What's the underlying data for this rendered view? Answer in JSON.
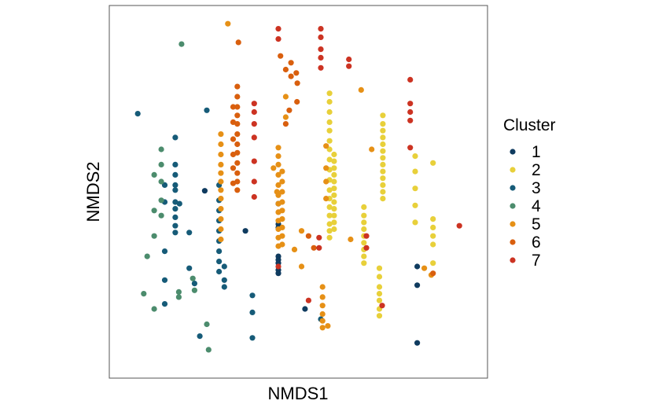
{
  "chart_data": {
    "type": "scatter",
    "title": "",
    "xlabel": "NMDS1",
    "ylabel": "NMDS2",
    "xlim": [
      0,
      10
    ],
    "ylim": [
      0,
      10
    ],
    "x_ticks_shown": false,
    "y_ticks_shown": false,
    "grid": false,
    "legend": {
      "title": "Cluster",
      "placement": "right"
    },
    "series": [
      {
        "name": "1",
        "color": "#0f3b5f",
        "points": [
          [
            2.34,
            5.03
          ],
          [
            4.44,
            4.65
          ],
          [
            4.44,
            4.05
          ],
          [
            4.44,
            3.95
          ],
          [
            4.44,
            3.1
          ],
          [
            4.44,
            3.0
          ],
          [
            4.44,
            2.9
          ],
          [
            4.44,
            2.7
          ],
          [
            4.44,
            2.6
          ],
          [
            3.5,
            3.85
          ],
          [
            5.2,
            1.55
          ],
          [
            8.4,
            2.8
          ],
          [
            8.4,
            2.25
          ],
          [
            8.4,
            0.55
          ]
        ]
      },
      {
        "name": "2",
        "color": "#e8d03a",
        "points": [
          [
            5.9,
            7.9
          ],
          [
            5.9,
            7.65
          ],
          [
            5.9,
            7.35
          ],
          [
            5.9,
            7.05
          ],
          [
            5.9,
            6.8
          ],
          [
            5.9,
            6.5
          ],
          [
            5.9,
            6.25
          ],
          [
            5.9,
            5.95
          ],
          [
            5.9,
            5.65
          ],
          [
            5.9,
            5.35
          ],
          [
            5.9,
            5.05
          ],
          [
            5.9,
            4.8
          ],
          [
            5.9,
            4.55
          ],
          [
            5.9,
            4.3
          ],
          [
            5.9,
            4.05
          ],
          [
            5.9,
            3.85
          ],
          [
            5.9,
            3.65
          ],
          [
            6.03,
            6.1
          ],
          [
            6.03,
            5.9
          ],
          [
            6.03,
            5.7
          ],
          [
            6.03,
            5.5
          ],
          [
            6.03,
            5.3
          ],
          [
            6.03,
            5.1
          ],
          [
            6.03,
            4.9
          ],
          [
            6.03,
            4.7
          ],
          [
            6.03,
            4.5
          ],
          [
            6.03,
            4.3
          ],
          [
            6.03,
            4.1
          ],
          [
            6.03,
            3.9
          ],
          [
            6.88,
            4.55
          ],
          [
            6.88,
            4.3
          ],
          [
            6.88,
            4.1
          ],
          [
            6.88,
            3.9
          ],
          [
            6.88,
            3.7
          ],
          [
            6.88,
            3.5
          ],
          [
            6.88,
            3.3
          ],
          [
            6.88,
            3.1
          ],
          [
            6.88,
            2.9
          ],
          [
            7.42,
            7.25
          ],
          [
            7.42,
            7.0
          ],
          [
            7.42,
            6.8
          ],
          [
            7.42,
            6.6
          ],
          [
            7.42,
            6.4
          ],
          [
            7.42,
            6.2
          ],
          [
            7.42,
            6.0
          ],
          [
            7.42,
            5.8
          ],
          [
            7.42,
            5.6
          ],
          [
            7.42,
            5.4
          ],
          [
            7.42,
            5.2
          ],
          [
            7.42,
            5.0
          ],
          [
            7.42,
            4.8
          ],
          [
            7.32,
            2.75
          ],
          [
            7.32,
            2.5
          ],
          [
            7.32,
            2.2
          ],
          [
            7.32,
            2.0
          ],
          [
            7.32,
            1.8
          ],
          [
            7.32,
            1.55
          ],
          [
            7.32,
            1.35
          ],
          [
            8.34,
            6.05
          ],
          [
            8.34,
            5.6
          ],
          [
            8.34,
            5.1
          ],
          [
            8.34,
            4.6
          ],
          [
            8.34,
            4.1
          ],
          [
            8.85,
            5.85
          ],
          [
            8.85,
            4.2
          ],
          [
            8.85,
            3.95
          ],
          [
            8.85,
            3.7
          ],
          [
            8.85,
            3.45
          ],
          [
            8.85,
            2.9
          ]
        ]
      },
      {
        "name": "3",
        "color": "#165b78",
        "points": [
          [
            0.43,
            7.3
          ],
          [
            1.5,
            5.8
          ],
          [
            1.5,
            5.5
          ],
          [
            1.5,
            5.2
          ],
          [
            1.5,
            5.05
          ],
          [
            1.5,
            4.7
          ],
          [
            1.5,
            4.5
          ],
          [
            1.5,
            4.25
          ],
          [
            1.5,
            4.0
          ],
          [
            1.5,
            3.8
          ],
          [
            1.2,
            5.2
          ],
          [
            1.2,
            4.7
          ],
          [
            1.2,
            3.25
          ],
          [
            1.2,
            2.4
          ],
          [
            1.2,
            1.7
          ],
          [
            1.5,
            6.6
          ],
          [
            1.62,
            4.65
          ],
          [
            1.9,
            3.8
          ],
          [
            1.9,
            2.75
          ],
          [
            2.05,
            2.3
          ],
          [
            2.4,
            7.4
          ],
          [
            2.2,
            0.75
          ],
          [
            2.75,
            5.2
          ],
          [
            2.75,
            4.75
          ],
          [
            2.75,
            4.45
          ],
          [
            2.75,
            4.15
          ],
          [
            2.75,
            3.85
          ],
          [
            2.75,
            3.55
          ],
          [
            2.75,
            3.25
          ],
          [
            2.75,
            2.95
          ],
          [
            2.75,
            2.65
          ],
          [
            2.9,
            2.8
          ],
          [
            2.9,
            2.4
          ],
          [
            2.9,
            2.2
          ],
          [
            3.7,
            1.95
          ],
          [
            3.7,
            1.45
          ],
          [
            3.7,
            0.7
          ],
          [
            5.65,
            1.25
          ]
        ]
      },
      {
        "name": "4",
        "color": "#4c8c6d",
        "points": [
          [
            1.68,
            9.35
          ],
          [
            1.1,
            6.25
          ],
          [
            1.1,
            5.8
          ],
          [
            1.1,
            5.3
          ],
          [
            0.9,
            5.5
          ],
          [
            1.1,
            4.75
          ],
          [
            1.1,
            4.3
          ],
          [
            0.9,
            4.45
          ],
          [
            0.9,
            3.7
          ],
          [
            0.7,
            3.1
          ],
          [
            0.6,
            2.0
          ],
          [
            0.9,
            1.55
          ],
          [
            1.6,
            2.05
          ],
          [
            1.6,
            1.9
          ],
          [
            2.0,
            2.45
          ],
          [
            2.05,
            2.1
          ],
          [
            2.4,
            1.1
          ],
          [
            2.45,
            0.35
          ]
        ]
      },
      {
        "name": "5",
        "color": "#e69016",
        "points": [
          [
            3.0,
            9.95
          ],
          [
            2.8,
            6.7
          ],
          [
            2.8,
            6.4
          ],
          [
            2.8,
            6.1
          ],
          [
            2.8,
            5.8
          ],
          [
            2.8,
            5.55
          ],
          [
            2.8,
            5.3
          ],
          [
            2.8,
            5.05
          ],
          [
            2.8,
            4.8
          ],
          [
            2.8,
            4.5
          ],
          [
            2.8,
            4.2
          ],
          [
            2.8,
            3.9
          ],
          [
            2.8,
            3.6
          ],
          [
            4.44,
            6.3
          ],
          [
            4.44,
            6.05
          ],
          [
            4.44,
            5.8
          ],
          [
            4.44,
            5.5
          ],
          [
            4.44,
            5.2
          ],
          [
            4.44,
            4.9
          ],
          [
            4.44,
            4.65
          ],
          [
            4.44,
            4.4
          ],
          [
            4.44,
            4.15
          ],
          [
            4.44,
            3.9
          ],
          [
            4.44,
            3.65
          ],
          [
            4.44,
            3.4
          ],
          [
            4.55,
            5.6
          ],
          [
            4.55,
            5.3
          ],
          [
            4.55,
            5.0
          ],
          [
            4.55,
            4.7
          ],
          [
            4.55,
            4.45
          ],
          [
            4.55,
            4.2
          ],
          [
            4.55,
            3.95
          ],
          [
            4.55,
            3.7
          ],
          [
            4.55,
            3.45
          ],
          [
            4.4,
            5.0
          ],
          [
            4.3,
            5.7
          ],
          [
            4.65,
            7.8
          ],
          [
            4.65,
            7.2
          ],
          [
            4.9,
            3.3
          ],
          [
            5.1,
            3.85
          ],
          [
            5.1,
            2.8
          ],
          [
            5.8,
            6.35
          ],
          [
            5.8,
            5.7
          ],
          [
            5.8,
            5.3
          ],
          [
            5.8,
            4.8
          ],
          [
            5.7,
            2.2
          ],
          [
            5.7,
            1.9
          ],
          [
            5.7,
            1.65
          ],
          [
            5.7,
            1.4
          ],
          [
            5.7,
            1.2
          ],
          [
            5.7,
            1.0
          ],
          [
            5.85,
            1.05
          ],
          [
            6.5,
            3.6
          ],
          [
            6.8,
            8.0
          ],
          [
            7.1,
            6.25
          ],
          [
            8.6,
            2.75
          ],
          [
            8.8,
            2.55
          ]
        ]
      },
      {
        "name": "6",
        "color": "#d95f0e",
        "points": [
          [
            3.3,
            9.4
          ],
          [
            3.27,
            8.1
          ],
          [
            3.27,
            7.8
          ],
          [
            3.27,
            7.5
          ],
          [
            3.27,
            7.25
          ],
          [
            3.27,
            7.0
          ],
          [
            3.27,
            6.7
          ],
          [
            3.27,
            6.4
          ],
          [
            3.27,
            6.15
          ],
          [
            3.27,
            5.85
          ],
          [
            3.27,
            5.55
          ],
          [
            3.27,
            5.3
          ],
          [
            3.27,
            5.05
          ],
          [
            3.15,
            7.5
          ],
          [
            3.15,
            7.05
          ],
          [
            3.15,
            6.55
          ],
          [
            3.15,
            6.1
          ],
          [
            3.15,
            5.7
          ],
          [
            3.15,
            5.25
          ],
          [
            4.5,
            9.0
          ],
          [
            4.65,
            8.6
          ],
          [
            4.8,
            8.8
          ],
          [
            4.8,
            8.4
          ],
          [
            4.75,
            7.4
          ],
          [
            4.65,
            7.0
          ],
          [
            4.95,
            8.5
          ],
          [
            4.98,
            8.2
          ],
          [
            4.97,
            7.65
          ],
          [
            5.3,
            3.7
          ],
          [
            5.45,
            3.35
          ],
          [
            8.85,
            2.6
          ]
        ]
      },
      {
        "name": "7",
        "color": "#cc3322",
        "points": [
          [
            4.44,
            9.8
          ],
          [
            4.44,
            9.5
          ],
          [
            5.65,
            9.8
          ],
          [
            5.65,
            9.55
          ],
          [
            5.65,
            9.2
          ],
          [
            5.65,
            8.95
          ],
          [
            5.65,
            8.65
          ],
          [
            6.45,
            8.9
          ],
          [
            6.45,
            8.7
          ],
          [
            3.75,
            7.6
          ],
          [
            3.75,
            7.35
          ],
          [
            3.75,
            7.0
          ],
          [
            3.75,
            6.6
          ],
          [
            3.75,
            5.9
          ],
          [
            3.75,
            5.3
          ],
          [
            3.75,
            4.85
          ],
          [
            4.44,
            2.8
          ],
          [
            5.6,
            3.65
          ],
          [
            5.6,
            3.35
          ],
          [
            5.3,
            1.8
          ],
          [
            6.95,
            3.7
          ],
          [
            6.95,
            3.35
          ],
          [
            7.4,
            1.65
          ],
          [
            8.2,
            8.3
          ],
          [
            8.2,
            7.6
          ],
          [
            8.2,
            7.35
          ],
          [
            8.2,
            7.1
          ],
          [
            8.2,
            6.3
          ],
          [
            9.6,
            4.0
          ]
        ]
      }
    ]
  }
}
